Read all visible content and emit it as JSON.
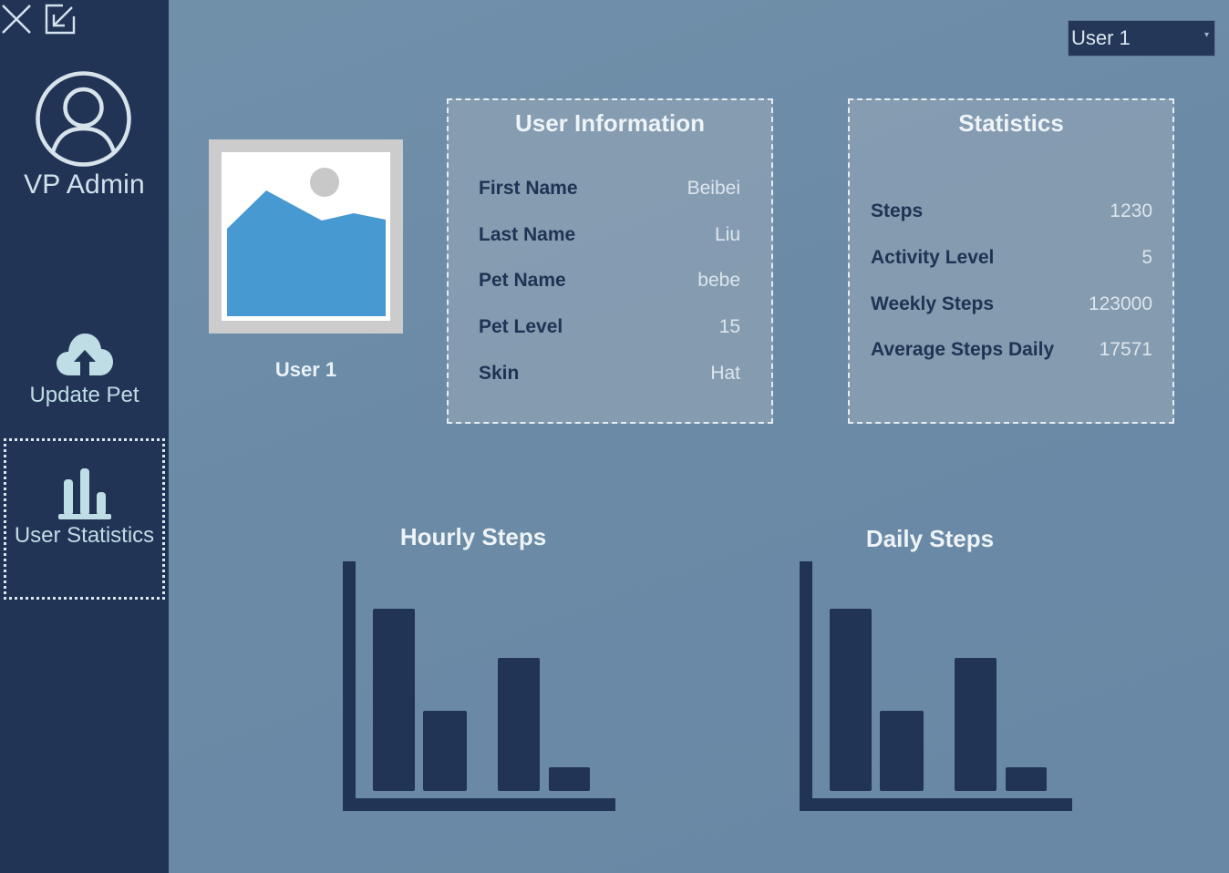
{
  "window": {
    "close_icon": "close-icon",
    "minimize_icon": "shrink-arrow-icon"
  },
  "sidebar": {
    "admin_name": "VP Admin",
    "avatar_icon": "user-circle-icon",
    "items": [
      {
        "label": "Update Pet",
        "icon": "cloud-upload-icon",
        "selected": false
      },
      {
        "label": "User Statistics",
        "icon": "bar-chart-icon",
        "selected": true
      }
    ]
  },
  "user_select": {
    "value": "User 1",
    "caret": "▾"
  },
  "profile": {
    "image_icon": "image-placeholder-icon",
    "caption": "User 1"
  },
  "user_info": {
    "title": "User Information",
    "rows": [
      {
        "label": "First Name",
        "value": "Beibei"
      },
      {
        "label": "Last Name",
        "value": "Liu"
      },
      {
        "label": "Pet Name",
        "value": "bebe"
      },
      {
        "label": "Pet Level",
        "value": "15"
      },
      {
        "label": "Skin",
        "value": "Hat"
      }
    ]
  },
  "statistics": {
    "title": "Statistics",
    "rows": [
      {
        "label": "Steps",
        "value": "1230"
      },
      {
        "label": "Activity Level",
        "value": "5"
      },
      {
        "label": "Weekly Steps",
        "value": "123000"
      },
      {
        "label": "Average Steps Daily",
        "value": "17571"
      }
    ]
  },
  "chart_data": [
    {
      "type": "bar",
      "title": "Hourly Steps",
      "xlabel": "",
      "ylabel": "",
      "grid": false,
      "values": [
        100,
        44,
        73,
        13
      ],
      "ylim": [
        0,
        128
      ],
      "bar_color": "#223456"
    },
    {
      "type": "bar",
      "title": "Daily Steps",
      "xlabel": "",
      "ylabel": "",
      "grid": false,
      "values": [
        100,
        44,
        73,
        13
      ],
      "ylim": [
        0,
        128
      ],
      "bar_color": "#223456"
    }
  ],
  "colors": {
    "sidebar_bg": "#223456",
    "main_bg": "#6e8ea9",
    "accent_icon": "#bfdde5",
    "label_dark": "#1f3354"
  }
}
